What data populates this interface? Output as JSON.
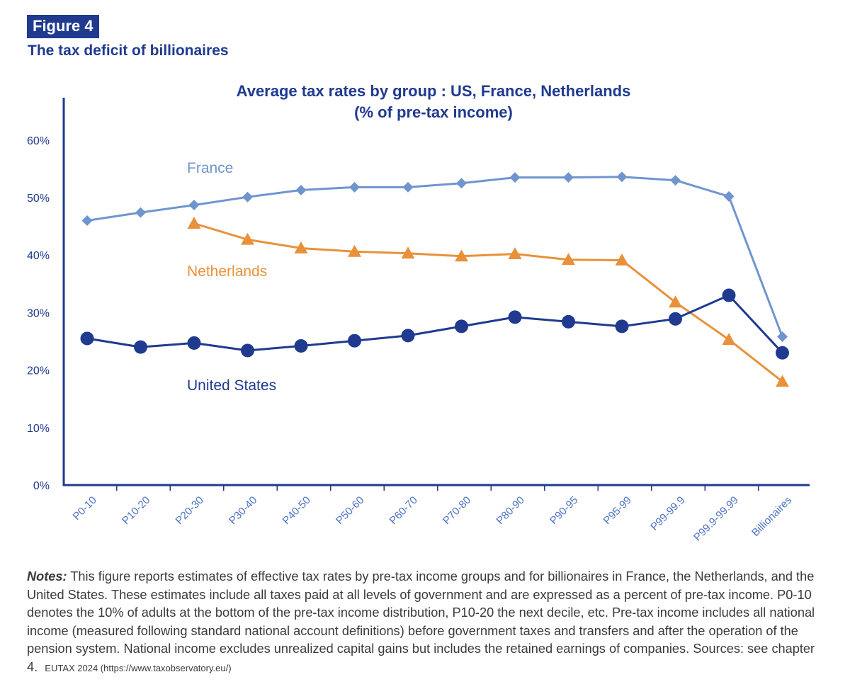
{
  "figure": {
    "badge": "Figure 4",
    "subtitle": "The tax deficit of billionaires"
  },
  "chart_data": {
    "type": "line",
    "title": "Average tax rates by group : US, France, Netherlands",
    "subtitle": "(% of pre-tax income)",
    "xlabel": "",
    "ylabel": "",
    "ylim": [
      0,
      60
    ],
    "yticks": [
      "0%",
      "10%",
      "20%",
      "30%",
      "40%",
      "50%",
      "60%"
    ],
    "categories": [
      "P0-10",
      "P10-20",
      "P20-30",
      "P30-40",
      "P40-50",
      "P50-60",
      "P60-70",
      "P70-80",
      "P80-90",
      "P90-95",
      "P95-99",
      "P99-99.9",
      "P99.9-99.99",
      "Billionaires"
    ],
    "grid": false,
    "series": [
      {
        "name": "France",
        "color": "#6f95cf",
        "marker": "diamond",
        "values": [
          46.0,
          47.4,
          48.7,
          50.1,
          51.3,
          51.8,
          51.8,
          52.5,
          53.5,
          53.5,
          53.6,
          53.0,
          50.2,
          25.8
        ]
      },
      {
        "name": "Netherlands",
        "color": "#e8913a",
        "marker": "triangle",
        "values": [
          null,
          null,
          45.5,
          42.7,
          41.2,
          40.6,
          40.3,
          39.8,
          40.2,
          39.2,
          39.1,
          31.8,
          25.3,
          18.0
        ]
      },
      {
        "name": "United States",
        "color": "#1f3a8f",
        "marker": "circle",
        "values": [
          25.5,
          24.0,
          24.7,
          23.4,
          24.2,
          25.1,
          26.0,
          27.6,
          29.2,
          28.4,
          27.6,
          28.9,
          33.0,
          23.0
        ]
      }
    ]
  },
  "notes": {
    "label": "Notes:",
    "text": " This figure reports  estimates of effective tax rates by pre-tax income groups and for billionaires in France, the Netherlands, and the United States. These estimates include all taxes paid at all levels of government and are expressed as a percent of pre-tax income. P0-10 denotes the 10% of adults at the bottom of the pre-tax income distribution, P10-20 the next decile, etc. Pre-tax income includes all national income (measured following standard national account definitions) before government taxes and transfers and after the operation of the pension system. National income excludes unrealized capital gains but includes the retained earnings of companies. Sources: see chapter 4.",
    "source": "EUTAX 2024 (https://www.taxobservatory.eu/)"
  }
}
